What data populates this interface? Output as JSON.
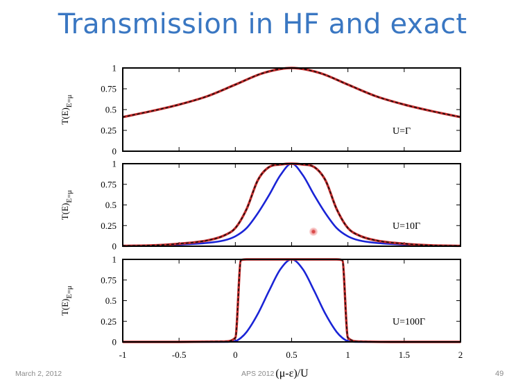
{
  "slide": {
    "title": "Transmission in HF and exact",
    "footer_date": "March 2, 2012",
    "footer_center": "APS 2012",
    "page_number": "49"
  },
  "chart_data": {
    "type": "line",
    "xlabel": "(μ-ε)/U",
    "ylabel": "T(E)",
    "ylabel_subscript": "E=μ",
    "xlim": [
      -1,
      2
    ],
    "ylim": [
      0,
      1
    ],
    "xticks": [
      "-1",
      "-0.5",
      "0",
      "0.5",
      "1",
      "1.5",
      "2"
    ],
    "yticks": [
      "0",
      "0.25",
      "0.5",
      "0.75",
      "1"
    ],
    "colors": {
      "blue": "#1a24d6",
      "exact": "#c42a2a",
      "hf": "#111111"
    },
    "panels": [
      {
        "label": "U=Γ",
        "x": [
          -1,
          -0.75,
          -0.5,
          -0.25,
          0,
          0.25,
          0.5,
          0.75,
          1,
          1.25,
          1.5,
          1.75,
          2
        ],
        "series": [
          {
            "values": [
              0.41,
              0.48,
              0.56,
              0.66,
              0.8,
              0.94,
              1.0,
              0.94,
              0.8,
              0.66,
              0.56,
              0.48,
              0.41
            ]
          },
          {
            "values": [
              0.41,
              0.48,
              0.56,
              0.66,
              0.8,
              0.94,
              1.0,
              0.94,
              0.8,
              0.66,
              0.56,
              0.48,
              0.41
            ]
          },
          {
            "values": [
              0.41,
              0.48,
              0.56,
              0.66,
              0.8,
              0.94,
              1.0,
              0.94,
              0.8,
              0.66,
              0.56,
              0.48,
              0.41
            ]
          }
        ]
      },
      {
        "label": "U=10Γ",
        "x": [
          -1,
          -0.75,
          -0.5,
          -0.25,
          -0.1,
          0,
          0.1,
          0.2,
          0.3,
          0.4,
          0.5,
          0.6,
          0.7,
          0.8,
          0.9,
          1,
          1.1,
          1.25,
          1.5,
          1.75,
          2
        ],
        "series": [
          {
            "values": [
              0.005,
              0.01,
              0.02,
              0.04,
              0.07,
              0.12,
              0.22,
              0.4,
              0.62,
              0.86,
              1.0,
              0.86,
              0.62,
              0.4,
              0.22,
              0.12,
              0.07,
              0.04,
              0.02,
              0.01,
              0.005
            ]
          },
          {
            "values": [
              0.005,
              0.01,
              0.03,
              0.07,
              0.13,
              0.22,
              0.45,
              0.8,
              0.96,
              0.99,
              1.0,
              0.99,
              0.96,
              0.8,
              0.45,
              0.22,
              0.13,
              0.07,
              0.03,
              0.01,
              0.005
            ]
          },
          {
            "values": [
              0.005,
              0.01,
              0.03,
              0.07,
              0.13,
              0.22,
              0.45,
              0.8,
              0.96,
              0.99,
              1.0,
              0.99,
              0.96,
              0.8,
              0.45,
              0.22,
              0.13,
              0.07,
              0.03,
              0.01,
              0.005
            ]
          }
        ]
      },
      {
        "label": "U=100Γ",
        "x": [
          -1,
          -0.5,
          -0.1,
          0,
          0.05,
          0.1,
          0.2,
          0.3,
          0.4,
          0.5,
          0.6,
          0.7,
          0.8,
          0.9,
          0.95,
          1,
          1.1,
          1.5,
          2
        ],
        "series": [
          {
            "values": [
              0,
              0,
              0,
              0.01,
              0.05,
              0.12,
              0.34,
              0.62,
              0.88,
              1.0,
              0.88,
              0.62,
              0.34,
              0.12,
              0.05,
              0.01,
              0,
              0,
              0
            ]
          },
          {
            "values": [
              0,
              0,
              0.005,
              0.05,
              0.99,
              1.0,
              1.0,
              1.0,
              1.0,
              1.0,
              1.0,
              1.0,
              1.0,
              1.0,
              0.99,
              0.05,
              0.005,
              0,
              0
            ]
          },
          {
            "values": [
              0,
              0,
              0.005,
              0.05,
              0.99,
              1.0,
              1.0,
              1.0,
              1.0,
              1.0,
              1.0,
              1.0,
              1.0,
              1.0,
              0.99,
              0.05,
              0.005,
              0,
              0
            ]
          }
        ]
      }
    ]
  }
}
